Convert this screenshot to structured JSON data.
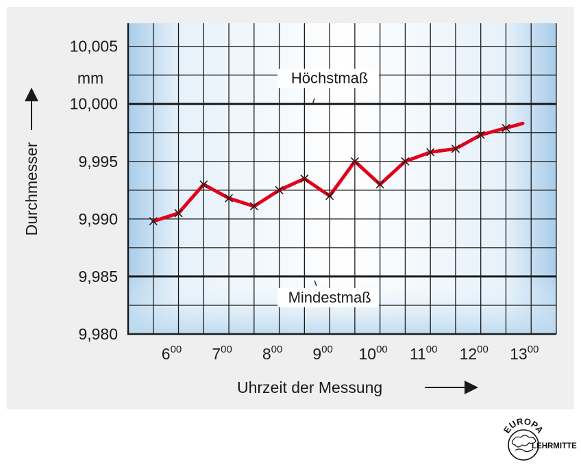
{
  "chart_data": {
    "type": "line",
    "title": "",
    "xlabel": "Uhrzeit der Messung",
    "ylabel": "Durchmesser",
    "y_unit": "mm",
    "ylim": [
      9.98,
      10.007
    ],
    "grid": true,
    "y_ticks": [
      {
        "value": 10.005,
        "label": "10,005"
      },
      {
        "value": 10.0,
        "label": "10,000"
      },
      {
        "value": 9.995,
        "label": "9,995"
      },
      {
        "value": 9.99,
        "label": "9,990"
      },
      {
        "value": 9.985,
        "label": "9,985"
      },
      {
        "value": 9.98,
        "label": "9,980"
      }
    ],
    "x_ticks": [
      {
        "hour": 6,
        "base": "6",
        "sup": "00"
      },
      {
        "hour": 7,
        "base": "7",
        "sup": "00"
      },
      {
        "hour": 8,
        "base": "8",
        "sup": "00"
      },
      {
        "hour": 9,
        "base": "9",
        "sup": "00"
      },
      {
        "hour": 10,
        "base": "10",
        "sup": "00"
      },
      {
        "hour": 11,
        "base": "11",
        "sup": "00"
      },
      {
        "hour": 12,
        "base": "12",
        "sup": "00"
      },
      {
        "hour": 13,
        "base": "13",
        "sup": "00"
      }
    ],
    "series": [
      {
        "x": [
          "5:30",
          "6:00",
          "6:30",
          "7:00",
          "7:30",
          "8:00",
          "8:30",
          "9:00",
          "9:30",
          "10:00",
          "10:30",
          "11:00",
          "11:30",
          "12:00",
          "12:30",
          "12:50"
        ],
        "values": [
          9.9898,
          9.9905,
          9.993,
          9.9918,
          9.9911,
          9.9925,
          9.9935,
          9.992,
          9.995,
          9.993,
          9.995,
          9.9958,
          9.9961,
          9.9973,
          9.9979,
          9.9983
        ],
        "markers": [
          true,
          true,
          true,
          true,
          true,
          true,
          true,
          true,
          true,
          true,
          true,
          true,
          true,
          true,
          true,
          false
        ],
        "color": "#e3001b"
      }
    ],
    "reference_lines": [
      {
        "value": 10.0,
        "label": "Höchstmaß"
      },
      {
        "value": 9.985,
        "label": "Mindestmaß"
      }
    ]
  },
  "colors": {
    "panel_bg": "#efefef",
    "plot_bg_edge": "#a9cdea",
    "plot_bg_center": "#ffffff",
    "line": "#e3001b",
    "grid": "#1a1a1a"
  },
  "logo": {
    "top_text": "EUROPA",
    "right_text": "LEHRMITTEL"
  }
}
